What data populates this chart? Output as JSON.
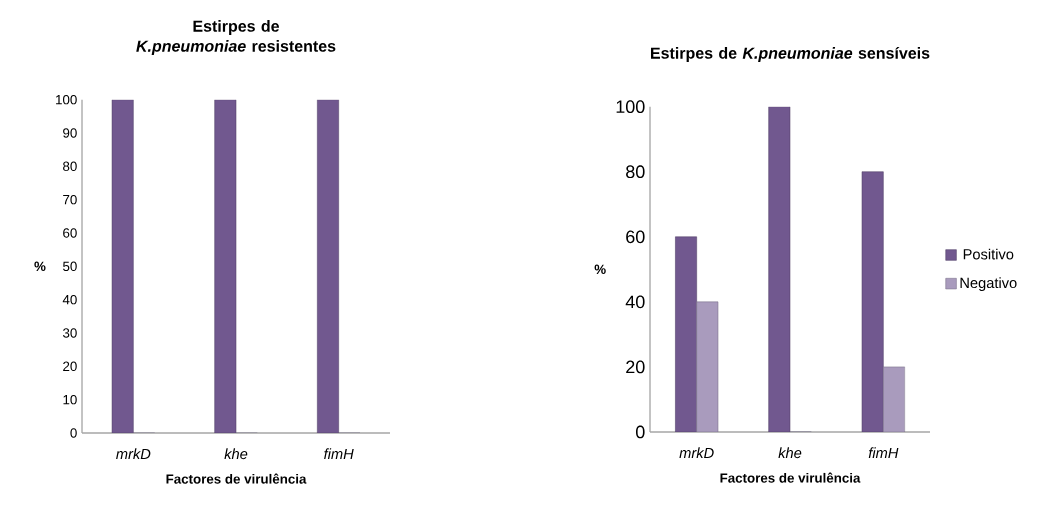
{
  "chart_data": [
    {
      "type": "bar",
      "title": "Estirpes de *K.pneumoniae* resistentes",
      "xlabel": "Factores de virulência",
      "ylabel": "%",
      "categories": [
        "mrkD",
        "khe",
        "fimH"
      ],
      "series": [
        {
          "color": "#71588f",
          "values": [
            100,
            100,
            100
          ]
        },
        {
          "color": "#a99bbd",
          "values": [
            0,
            0,
            0
          ]
        }
      ],
      "ylim": [
        0,
        100
      ],
      "yticks": [
        0,
        10,
        20,
        30,
        40,
        50,
        60,
        70,
        80,
        90,
        100
      ],
      "grid": false,
      "legend": false
    },
    {
      "type": "bar",
      "title": "Estirpes de *K.pneumoniae* sensíveis",
      "xlabel": "Factores de virulência",
      "ylabel": "%",
      "categories": [
        "mrkD",
        "khe",
        "fimH"
      ],
      "series": [
        {
          "name": "Positivo",
          "color": "#71588f",
          "values": [
            60,
            100,
            80
          ]
        },
        {
          "name": "Negativo",
          "color": "#a99bbd",
          "values": [
            40,
            0,
            20
          ]
        }
      ],
      "ylim": [
        0,
        100
      ],
      "yticks": [
        0,
        20,
        40,
        60,
        80,
        100
      ],
      "grid": false,
      "legend": "right"
    }
  ]
}
